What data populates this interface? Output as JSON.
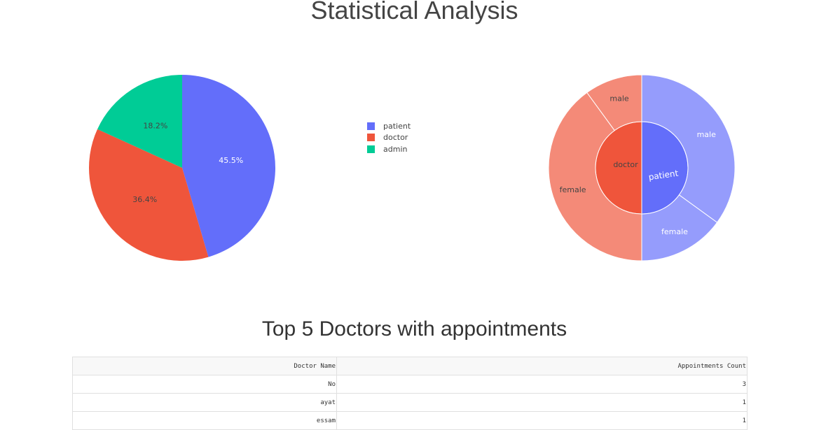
{
  "page": {
    "title": "Statistical Analysis",
    "table_title": "Top 5 Doctors with appointments"
  },
  "colors": {
    "patient": "#636efa",
    "doctor": "#ef553b",
    "admin": "#00cc96",
    "patient_ring": "#959cfc",
    "doctor_ring": "#f48a78"
  },
  "chart_data": [
    {
      "type": "pie",
      "legend_placement": "right",
      "slices": [
        {
          "label": "patient",
          "value": 45.5,
          "text": "45.5%",
          "color": "#636efa"
        },
        {
          "label": "doctor",
          "value": 36.4,
          "text": "36.4%",
          "color": "#ef553b"
        },
        {
          "label": "admin",
          "value": 18.2,
          "text": "18.2%",
          "color": "#00cc96"
        }
      ]
    },
    {
      "type": "sunburst",
      "inner": [
        {
          "label": "patient",
          "value": 50,
          "color": "#636efa"
        },
        {
          "label": "doctor",
          "value": 50,
          "color": "#ef553b"
        }
      ],
      "outer": [
        {
          "label": "male",
          "parent": "patient",
          "value": 35,
          "color": "#959cfc"
        },
        {
          "label": "female",
          "parent": "patient",
          "value": 15,
          "color": "#959cfc"
        },
        {
          "label": "female",
          "parent": "doctor",
          "value": 40,
          "color": "#f48a78"
        },
        {
          "label": "male",
          "parent": "doctor",
          "value": 10,
          "color": "#f48a78"
        }
      ]
    }
  ],
  "table": {
    "headers": [
      "Doctor Name",
      "Appointments Count"
    ],
    "rows": [
      [
        "No",
        "3"
      ],
      [
        "ayat",
        "1"
      ],
      [
        "essam",
        "1"
      ]
    ]
  }
}
